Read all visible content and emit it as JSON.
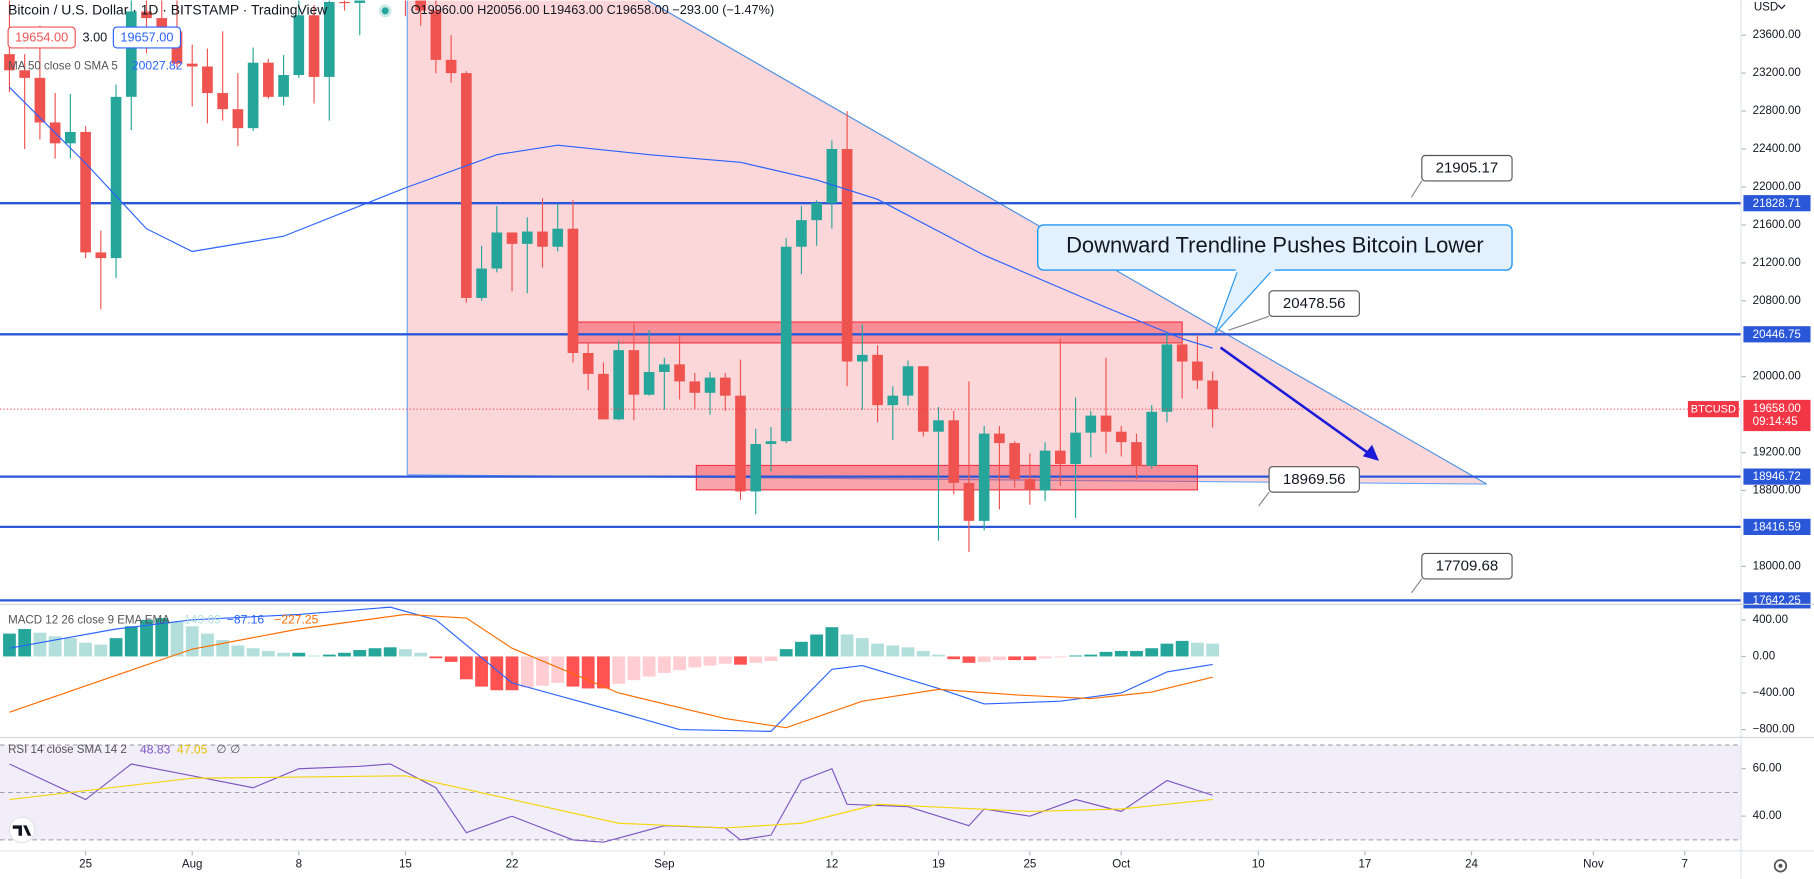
{
  "header": {
    "title": "Bitcoin / U.S. Dollar · 1D · BITSTAMP · TradingView",
    "ohlc": "O19960.00 H20056.00 L19463.00 C19658.00 −293.00 (−1.47%)",
    "bid": "19654.00",
    "spread": "3.00",
    "ask": "19657.00",
    "currency": "USD"
  },
  "annotation": "Downward Trendline Pushes Bitcoin Lower",
  "callouts": [
    "21905.17",
    "20478.56",
    "18969.56",
    "17709.68"
  ],
  "chart_data": [
    {
      "type": "candlestick",
      "xlim": [
        -0.62,
        113.7
      ],
      "ylim": [
        17600,
        23966
      ],
      "xticks": [
        {
          "value": 5,
          "label": "25"
        },
        {
          "value": 12,
          "label": "Aug"
        },
        {
          "value": 19,
          "label": "8"
        },
        {
          "value": 26,
          "label": "15"
        },
        {
          "value": 33,
          "label": "22"
        },
        {
          "value": 43,
          "label": "Sep"
        },
        {
          "value": 54,
          "label": "12"
        },
        {
          "value": 61,
          "label": "19"
        },
        {
          "value": 67,
          "label": "25"
        },
        {
          "value": 73,
          "label": "Oct"
        },
        {
          "value": 82,
          "label": "10"
        },
        {
          "value": 89,
          "label": "17"
        },
        {
          "value": 96,
          "label": "24"
        },
        {
          "value": 104,
          "label": "Nov"
        },
        {
          "value": 110,
          "label": "7"
        }
      ],
      "yticks": [
        {
          "value": 23600,
          "label": "23600.00"
        },
        {
          "value": 23200,
          "label": "23200.00"
        },
        {
          "value": 22800,
          "label": "22800.00"
        },
        {
          "value": 22400,
          "label": "22400.00"
        },
        {
          "value": 22000,
          "label": "22000.00"
        },
        {
          "value": 21600,
          "label": "21600.00"
        },
        {
          "value": 21200,
          "label": "21200.00"
        },
        {
          "value": 20800,
          "label": "20800.00"
        },
        {
          "value": 20000,
          "label": "20000.00"
        },
        {
          "value": 19200,
          "label": "19200.00"
        },
        {
          "value": 18800,
          "label": "18800.00"
        },
        {
          "value": 18000,
          "label": "18000.00"
        }
      ],
      "up_color": "#26a69a",
      "down_color": "#ef5350",
      "open": [
        23400,
        23230,
        23150,
        22680,
        22460,
        22580,
        21310,
        21250,
        22950,
        23850,
        23780,
        23640,
        23300,
        23270,
        22990,
        22820,
        22620,
        23310,
        22950,
        23180,
        23810,
        23160,
        23950,
        23940,
        24400,
        24440,
        24300,
        24100,
        23860,
        23340,
        23200,
        20830,
        21140,
        21520,
        21400,
        21530,
        21370,
        21560,
        20250,
        20030,
        19550,
        20280,
        19810,
        20050,
        20130,
        19950,
        19830,
        19990,
        19800,
        18790,
        19290,
        19320,
        21370,
        21650,
        21830,
        22400,
        20160,
        20230,
        19700,
        19800,
        20110,
        19420,
        19540,
        18880,
        18480,
        19400,
        19300,
        18920,
        18800,
        19220,
        19080,
        19410,
        19590,
        19420,
        19310,
        19060,
        19630,
        20340,
        20160,
        19960
      ],
      "high": [
        24250,
        23400,
        23700,
        22990,
        22980,
        22640,
        21540,
        23080,
        24180,
        24440,
        24650,
        24200,
        23500,
        23460,
        23640,
        23200,
        23470,
        23350,
        23390,
        24230,
        23920,
        24200,
        24900,
        24450,
        24890,
        25050,
        25200,
        24250,
        24450,
        23600,
        23220,
        21380,
        21800,
        21520,
        21680,
        21880,
        21820,
        21860,
        20350,
        20150,
        20380,
        20560,
        20490,
        20200,
        20440,
        20040,
        20050,
        20040,
        20180,
        19450,
        19470,
        21460,
        21800,
        21860,
        22490,
        22800,
        20550,
        20330,
        19900,
        20170,
        20110,
        19680,
        19640,
        19950,
        19480,
        19480,
        19320,
        19190,
        19310,
        20400,
        19780,
        19640,
        20200,
        19480,
        19400,
        19700,
        20470,
        20370,
        20440,
        20056
      ],
      "low": [
        23000,
        22400,
        22500,
        22300,
        22300,
        21250,
        20710,
        21040,
        22600,
        23410,
        23500,
        23260,
        22850,
        22670,
        22700,
        22430,
        22590,
        22930,
        22860,
        23150,
        22880,
        22700,
        23860,
        23600,
        24300,
        24150,
        23800,
        23700,
        23200,
        23100,
        20780,
        20800,
        21100,
        20900,
        20880,
        21150,
        21320,
        20150,
        19860,
        19550,
        19540,
        19540,
        19800,
        19650,
        19760,
        19660,
        19600,
        19640,
        18700,
        18550,
        19000,
        19300,
        21080,
        21380,
        21560,
        19900,
        19650,
        19520,
        19330,
        19700,
        19370,
        18270,
        18760,
        18150,
        18380,
        18600,
        18830,
        18650,
        18690,
        18850,
        18510,
        19150,
        19190,
        19160,
        18920,
        19030,
        19520,
        19770,
        19870,
        19463
      ],
      "close": [
        23230,
        23150,
        22680,
        22460,
        22580,
        21310,
        21250,
        22950,
        23850,
        23780,
        23640,
        23300,
        23270,
        22990,
        22820,
        22620,
        23310,
        22950,
        23180,
        23810,
        23160,
        23950,
        23940,
        24400,
        24440,
        24300,
        24100,
        23860,
        23340,
        23200,
        20830,
        21140,
        21520,
        21400,
        21530,
        21370,
        21560,
        20250,
        20030,
        19550,
        20280,
        19810,
        20050,
        20130,
        19950,
        19830,
        19990,
        19800,
        18790,
        19290,
        19320,
        21370,
        21650,
        21830,
        22400,
        20160,
        20230,
        19700,
        19800,
        20110,
        19420,
        19540,
        18880,
        18480,
        19400,
        19300,
        18920,
        18800,
        19220,
        19080,
        19410,
        19590,
        19420,
        19310,
        19060,
        19630,
        20340,
        20160,
        19960,
        19658
      ],
      "ma": {
        "name": "MA 50 close 0 SMA 5",
        "legend_value": "20027.82",
        "color": "#2962ff",
        "x": [
          0,
          5,
          9,
          12,
          18,
          26,
          32,
          36,
          42,
          48,
          53,
          57,
          64,
          72,
          77,
          79
        ],
        "values": [
          23050,
          22250,
          21560,
          21320,
          21480,
          21990,
          22340,
          22440,
          22340,
          22260,
          22075,
          21870,
          21280,
          20730,
          20400,
          20300
        ]
      },
      "levels": {
        "color": "#2a56d8",
        "values": [
          21828.71,
          20446.75,
          18946.72,
          18416.59,
          17642.25
        ]
      },
      "zones": [
        {
          "from": 37.3,
          "to": 77,
          "low": 20356,
          "high": 20576
        },
        {
          "from": 45.1,
          "to": 78,
          "low": 18807,
          "high": 19064
        }
      ],
      "last_price": {
        "symbol": "BTCUSD",
        "label": "19658.00",
        "countdown": "09:14:45",
        "color": "#f23645"
      }
    },
    {
      "type": "macd",
      "title": "MACD 12 26 close 9 EMA EMA",
      "legend_values": [
        "140.09",
        "−87.16",
        "−227.25"
      ],
      "ylim": [
        -886,
        570
      ],
      "yticks": [
        {
          "value": 400,
          "label": "400.00"
        },
        {
          "value": 0,
          "label": "0.00"
        },
        {
          "value": -400,
          "label": "−400.00"
        },
        {
          "value": -800,
          "label": "−800.00"
        }
      ],
      "histogram": {
        "colors": [
          "#26a69a",
          "#b2dfdb",
          "#ff5252",
          "#ffcdd2"
        ],
        "values": [
          250,
          300,
          260,
          220,
          200,
          150,
          130,
          200,
          330,
          400,
          420,
          380,
          330,
          250,
          180,
          120,
          90,
          60,
          40,
          40,
          10,
          20,
          40,
          70,
          90,
          100,
          80,
          40,
          -20,
          -60,
          -250,
          -330,
          -370,
          -370,
          -340,
          -320,
          -290,
          -330,
          -350,
          -350,
          -300,
          -260,
          -220,
          -180,
          -150,
          -120,
          -100,
          -80,
          -90,
          -70,
          -50,
          80,
          160,
          240,
          320,
          240,
          200,
          140,
          120,
          100,
          60,
          20,
          -30,
          -70,
          -60,
          -40,
          -40,
          -40,
          -20,
          -10,
          10,
          20,
          50,
          60,
          60,
          90,
          140,
          170,
          150,
          140.09
        ]
      },
      "series": [
        {
          "color": "#2962ff",
          "x": [
            0,
            7,
            12,
            19,
            25,
            28,
            33,
            40,
            44,
            50,
            54,
            56,
            61,
            64,
            69,
            73,
            76,
            79
          ],
          "values": [
            90,
            300,
            400,
            460,
            540,
            400,
            -290,
            -610,
            -800,
            -820,
            -140,
            -100,
            -350,
            -520,
            -490,
            -400,
            -170,
            -87.16
          ]
        },
        {
          "color": "#ff6d00",
          "x": [
            0,
            12,
            19,
            26,
            30,
            33,
            40,
            47,
            51,
            56,
            61,
            66,
            71,
            75,
            79
          ],
          "values": [
            -610,
            80,
            300,
            460,
            420,
            90,
            -400,
            -680,
            -780,
            -490,
            -360,
            -420,
            -460,
            -390,
            -227.25
          ]
        }
      ]
    },
    {
      "type": "rsi",
      "title": "RSI 14 close SMA 14 2",
      "legend_values": [
        "48.83",
        "47.05",
        "∅",
        "∅"
      ],
      "ylim": [
        25.4,
        73.2
      ],
      "yticks": [
        {
          "value": 60,
          "label": "60.00"
        },
        {
          "value": 40,
          "label": "40.00"
        }
      ],
      "bands": [
        30,
        50,
        70
      ],
      "band_color": "#7e57c2",
      "series": [
        {
          "color": "#7e57c2",
          "x": [
            0,
            5,
            8,
            12,
            16,
            19,
            23,
            25,
            28,
            30,
            33,
            37,
            39,
            43,
            47,
            48,
            50,
            52,
            54,
            55,
            59,
            61,
            63,
            64,
            67,
            70,
            73,
            76,
            79
          ],
          "values": [
            62,
            47,
            62,
            57,
            52,
            60,
            61,
            62,
            52,
            33,
            40,
            30,
            29,
            36,
            35,
            30,
            32,
            55,
            60,
            45,
            44,
            40,
            36,
            43,
            40,
            47,
            42,
            55,
            48.83
          ]
        },
        {
          "color": "#f5d60d",
          "x": [
            0,
            12,
            26,
            33,
            40,
            47,
            52,
            57,
            67,
            73,
            79
          ],
          "values": [
            47,
            56,
            57,
            47,
            37,
            35,
            37,
            45,
            42,
            43,
            47.05
          ]
        }
      ]
    }
  ]
}
